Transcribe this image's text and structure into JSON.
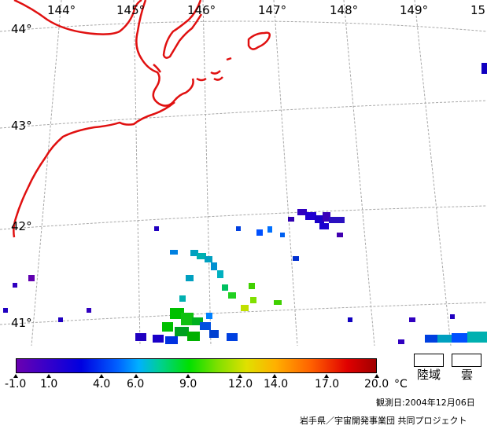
{
  "longitude_labels": [
    "144°",
    "145°",
    "146°",
    "147°",
    "148°",
    "149°",
    "15"
  ],
  "latitude_labels": [
    "44°",
    "43°",
    "42°",
    "41°"
  ],
  "colorbar": {
    "tick_labels": [
      "-1.0",
      "1.0",
      "4.0",
      "6.0",
      "9.0",
      "12.0",
      "14.0",
      "17.0",
      "20.0"
    ],
    "unit": "°C"
  },
  "legend": {
    "land_label": "陸域",
    "cloud_label": "雲"
  },
  "observation_date": "観測日:2004年12月06日",
  "credit": "岩手県／宇宙開発事業団 共同プロジェクト",
  "colors": {
    "coastline": "#e01010",
    "grid": "#a0a0a0",
    "background": "#ffffff"
  }
}
